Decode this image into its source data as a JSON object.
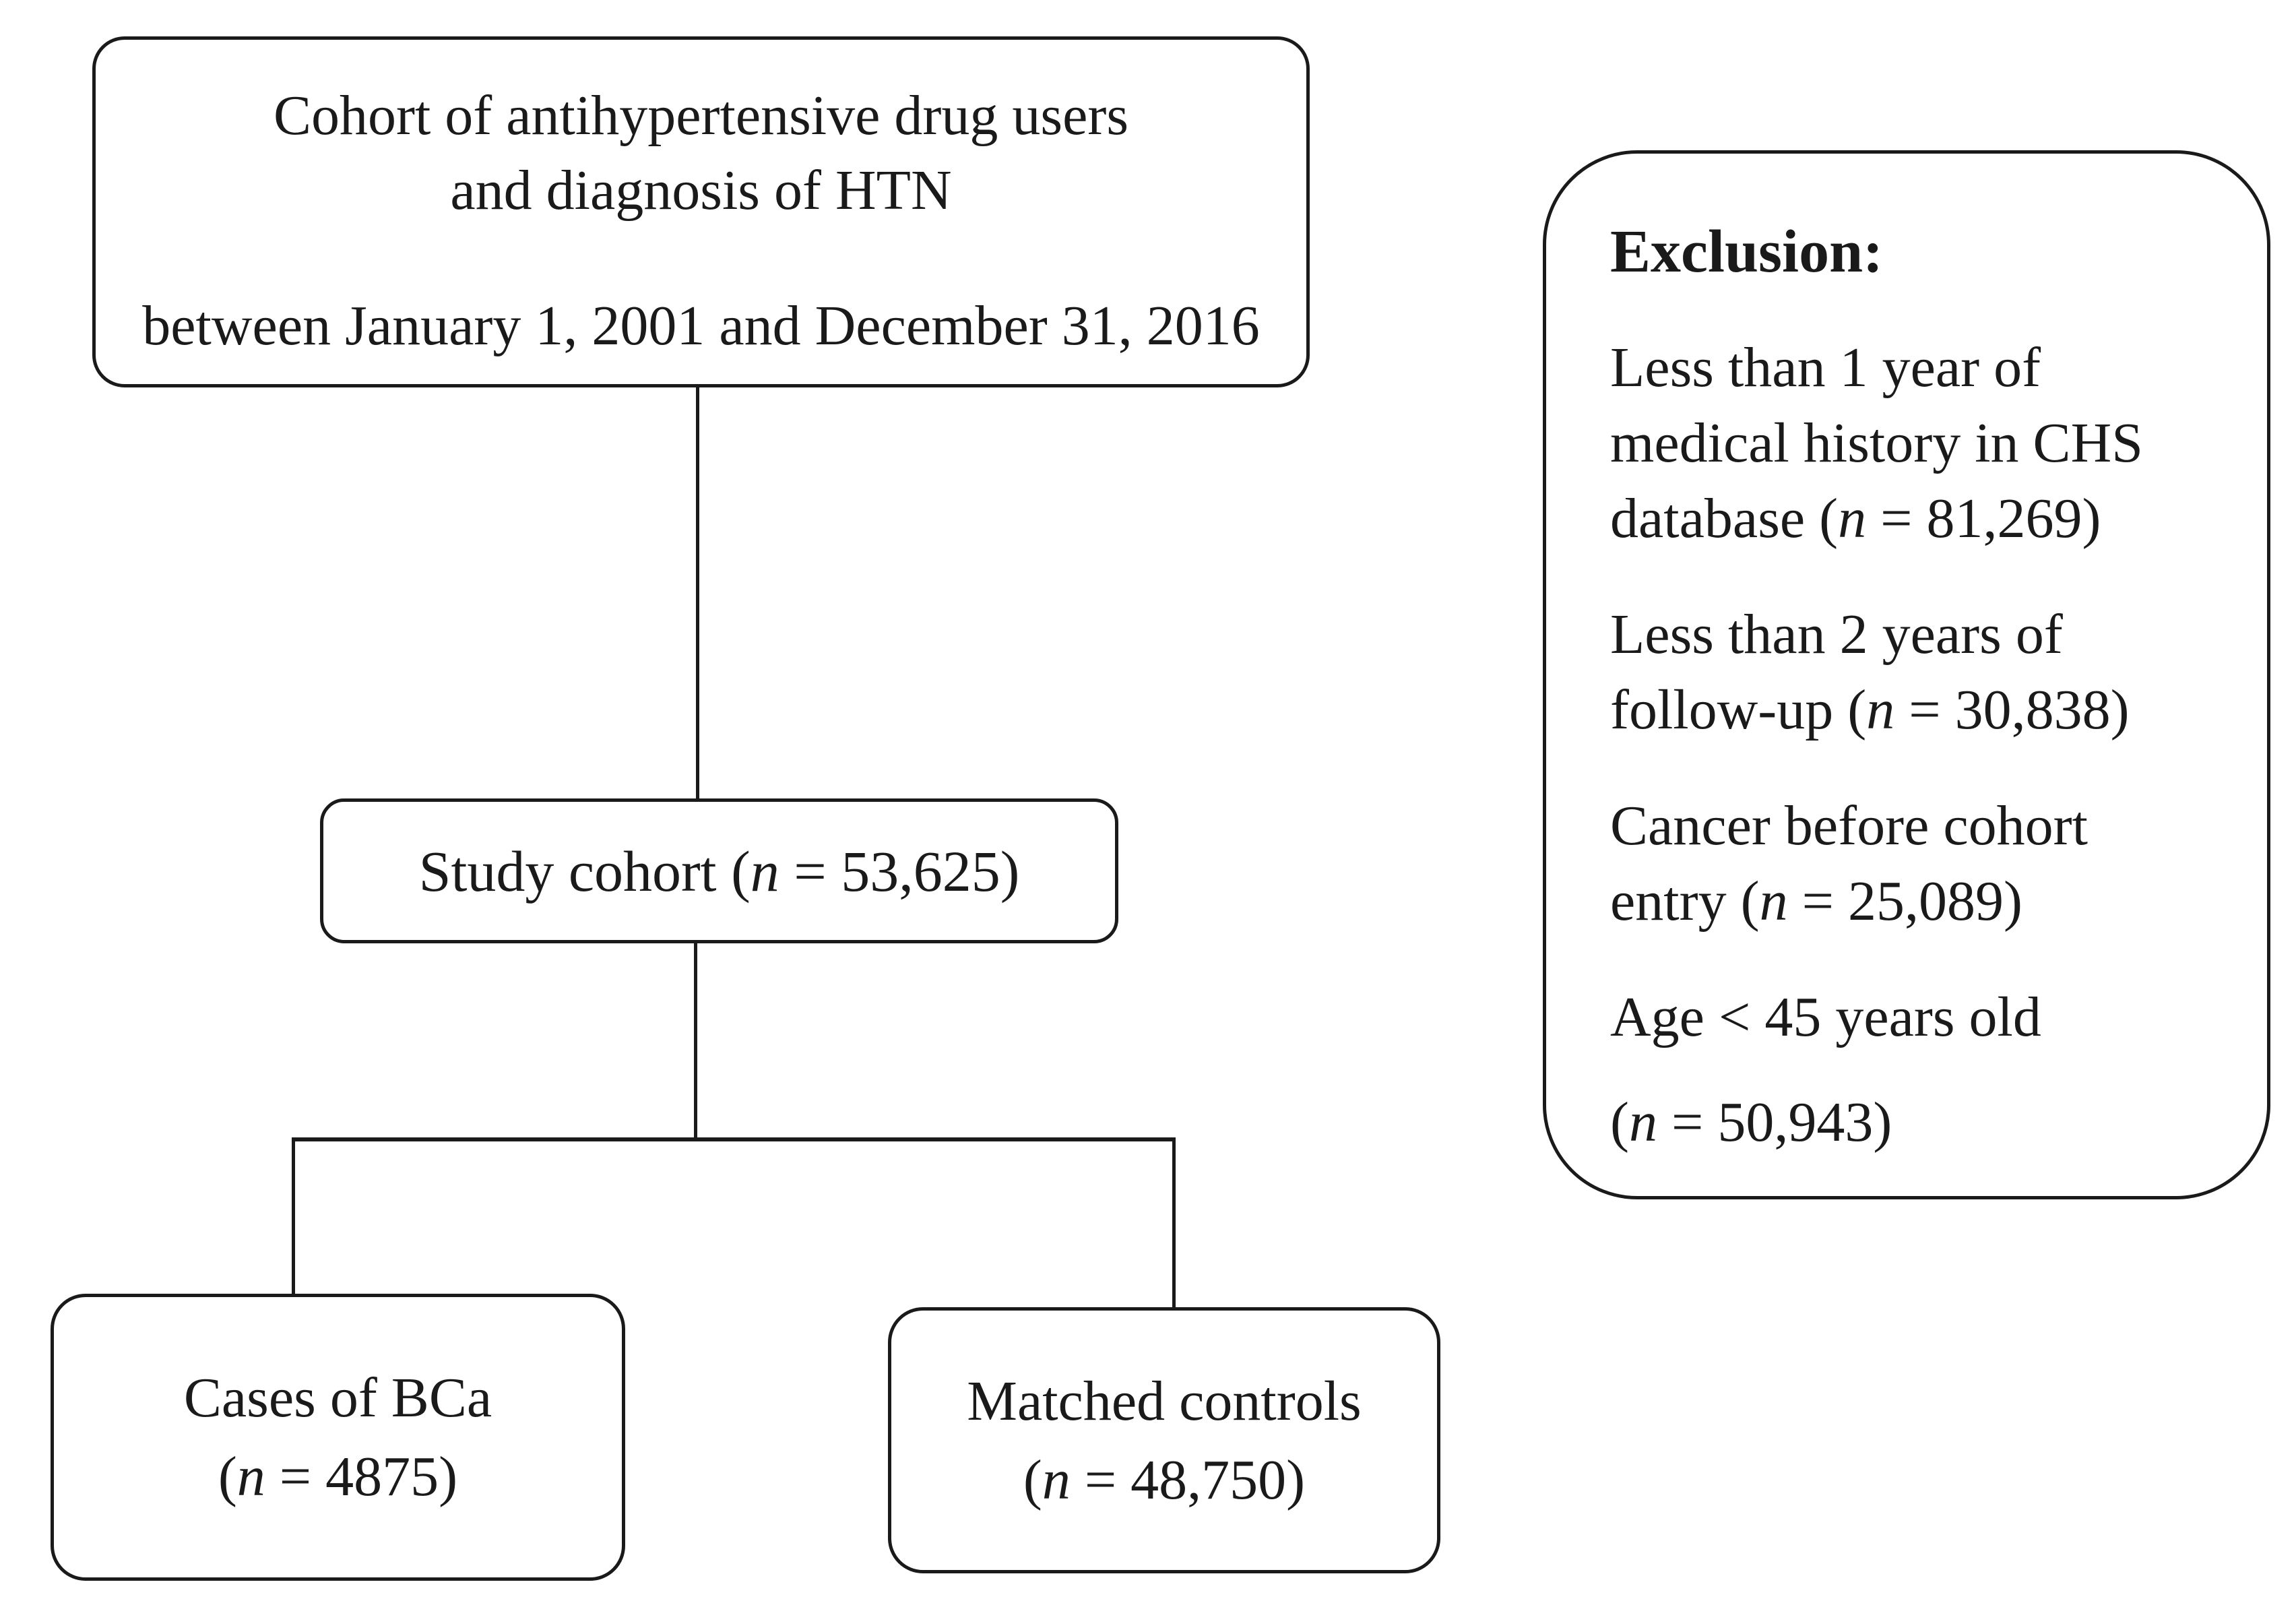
{
  "colors": {
    "ink": "#1a1a1a",
    "background": "#ffffff"
  },
  "flowchart": {
    "top_box": {
      "lines": [
        "Cohort of antihypertensive drug users",
        "and diagnosis of HTN"
      ],
      "date_line": "between January 1, 2001 and December 31, 2016"
    },
    "study_box": {
      "label": "Study cohort (n = 53,625)"
    },
    "cases_box": {
      "lines": [
        "Cases of BCa",
        "(n = 4875)"
      ]
    },
    "controls_box": {
      "lines": [
        "Matched controls",
        "(n = 48,750)"
      ]
    },
    "exclusion_box": {
      "title": "Exclusion:",
      "items": [
        {
          "lines": [
            "Less than 1 year of",
            "medical history in CHS",
            "database (n = 81,269)"
          ]
        },
        {
          "lines": [
            "Less than 2 years of",
            "follow-up (n = 30,838)"
          ]
        },
        {
          "lines": [
            "Cancer before cohort",
            "entry (n = 25,089)"
          ]
        },
        {
          "lines": [
            "Age < 45 years old"
          ]
        },
        {
          "lines": [
            "(n = 50,943)"
          ]
        }
      ]
    }
  }
}
